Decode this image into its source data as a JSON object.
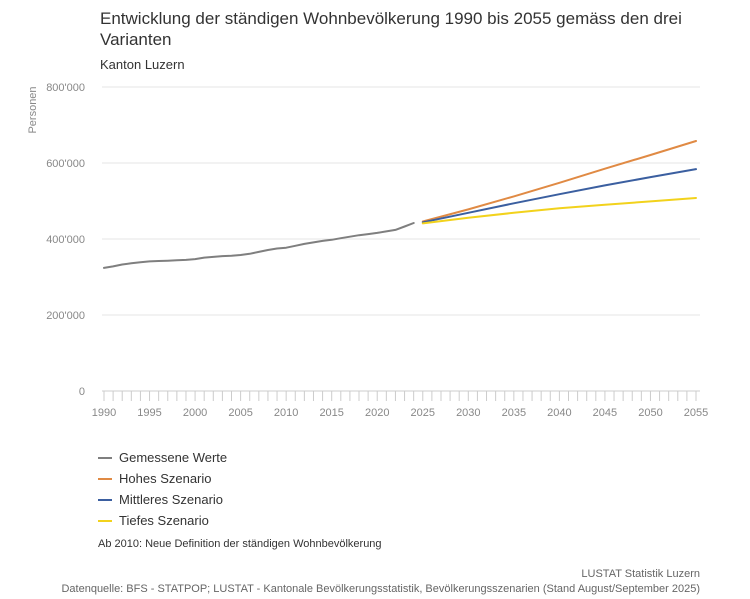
{
  "chart_data": {
    "type": "line",
    "title": "Entwicklung der ständigen Wohnbevölkerung 1990 bis 2055 gemäss den drei Varianten",
    "subtitle": "Kanton Luzern",
    "xlabel": "",
    "ylabel": "Personen",
    "xlim": [
      1990,
      2055
    ],
    "ylim": [
      0,
      800000
    ],
    "yticks": [
      0,
      200000,
      400000,
      600000,
      800000
    ],
    "ytick_labels": [
      "0",
      "200'000",
      "400'000",
      "600'000",
      "800'000"
    ],
    "xticks": [
      1990,
      1995,
      2000,
      2005,
      2010,
      2015,
      2020,
      2025,
      2030,
      2035,
      2040,
      2045,
      2050,
      2055
    ],
    "xtick_labels": [
      "1990",
      "1995",
      "2000",
      "2005",
      "2010",
      "2015",
      "2020",
      "2025",
      "2030",
      "2035",
      "2040",
      "2045",
      "2050",
      "2055"
    ],
    "grid": true,
    "legend_position": "bottom-left",
    "series": [
      {
        "name": "Gemessene Werte",
        "color": "#7f7f7f",
        "x": [
          1990,
          1991,
          1992,
          1993,
          1994,
          1995,
          1996,
          1997,
          1998,
          1999,
          2000,
          2001,
          2002,
          2003,
          2004,
          2005,
          2006,
          2007,
          2008,
          2009,
          2010,
          2011,
          2012,
          2013,
          2014,
          2015,
          2016,
          2017,
          2018,
          2019,
          2020,
          2021,
          2022,
          2023,
          2024
        ],
        "values": [
          324000,
          328000,
          333000,
          336000,
          339000,
          341000,
          342000,
          343000,
          344000,
          345000,
          347000,
          351000,
          353000,
          355000,
          356000,
          358000,
          361000,
          366000,
          371000,
          375000,
          377000,
          382000,
          387000,
          391000,
          395000,
          398000,
          402000,
          406000,
          410000,
          413000,
          416000,
          420000,
          424000,
          433000,
          442000
        ]
      },
      {
        "name": "Hohes Szenario",
        "color": "#e08a44",
        "x": [
          2025,
          2030,
          2035,
          2040,
          2045,
          2050,
          2055
        ],
        "values": [
          446000,
          478000,
          512000,
          548000,
          585000,
          621000,
          658000
        ]
      },
      {
        "name": "Mittleres Szenario",
        "color": "#3b5fa0",
        "x": [
          2025,
          2030,
          2035,
          2040,
          2045,
          2050,
          2055
        ],
        "values": [
          444000,
          469000,
          494000,
          518000,
          541000,
          563000,
          584000
        ]
      },
      {
        "name": "Tiefes Szenario",
        "color": "#f2d21c",
        "x": [
          2025,
          2030,
          2035,
          2040,
          2045,
          2050,
          2055
        ],
        "values": [
          441000,
          456000,
          469000,
          481000,
          490000,
          499000,
          508000
        ]
      }
    ]
  },
  "note": "Ab 2010: Neue Definition der ständigen Wohnbevölkerung",
  "credit": "LUSTAT Statistik Luzern",
  "source": "Datenquelle: BFS - STATPOP; LUSTAT - Kantonale Bevölkerungsstatistik, Bevölkerungsszenarien (Stand August/September 2025)"
}
